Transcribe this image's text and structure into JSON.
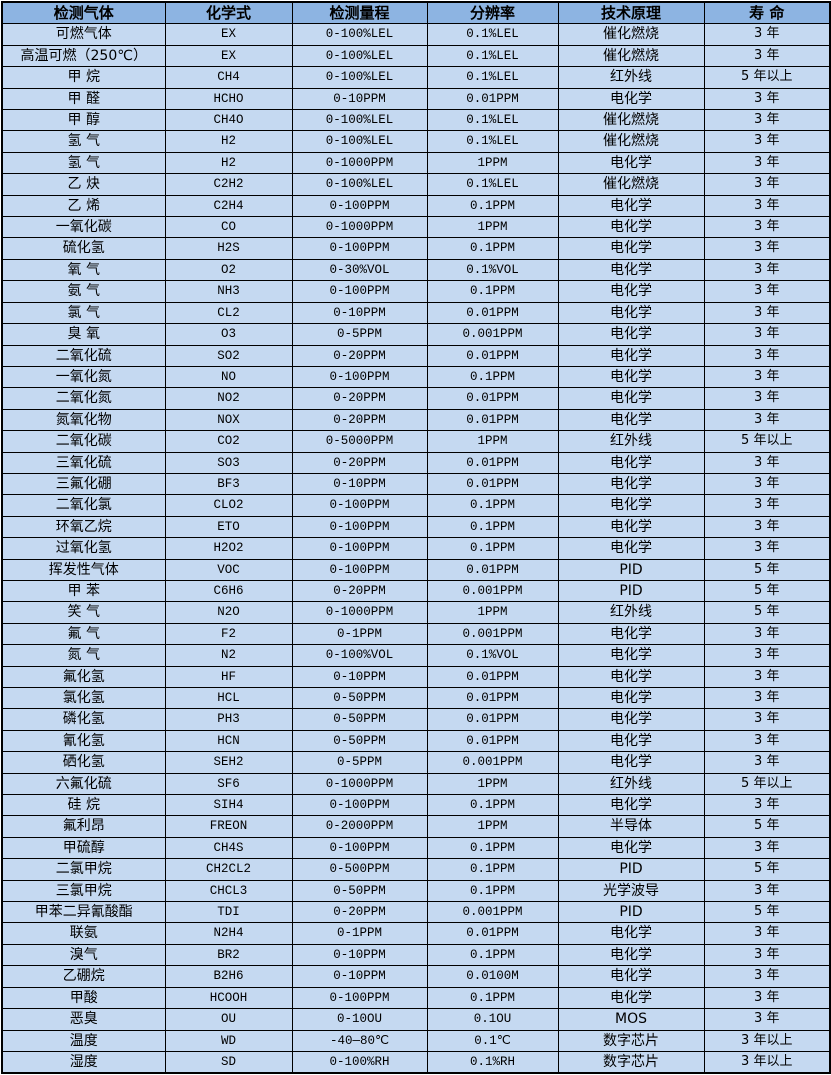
{
  "colors": {
    "header_bg": "#8db4e2",
    "cell_bg": "#c5d9f1",
    "border": "#000000",
    "text": "#000000"
  },
  "table": {
    "columns": [
      "检测气体",
      "化学式",
      "检测量程",
      "分辨率",
      "技术原理",
      "寿 命"
    ],
    "rows": [
      [
        "可燃气体",
        "EX",
        "0-100%LEL",
        "0.1%LEL",
        "催化燃烧",
        "3 年"
      ],
      [
        "高温可燃（250℃）",
        "EX",
        "0-100%LEL",
        "0.1%LEL",
        "催化燃烧",
        "3 年"
      ],
      [
        "甲 烷",
        "CH4",
        "0-100%LEL",
        "0.1%LEL",
        "红外线",
        "5 年以上"
      ],
      [
        "甲 醛",
        "HCHO",
        "0-10PPM",
        "0.01PPM",
        "电化学",
        "3 年"
      ],
      [
        "甲 醇",
        "CH4O",
        "0-100%LEL",
        "0.1%LEL",
        "催化燃烧",
        "3 年"
      ],
      [
        "氢 气",
        "H2",
        "0-100%LEL",
        "0.1%LEL",
        "催化燃烧",
        "3 年"
      ],
      [
        "氢 气",
        "H2",
        "0-1000PPM",
        "1PPM",
        "电化学",
        "3 年"
      ],
      [
        "乙 炔",
        "C2H2",
        "0-100%LEL",
        "0.1%LEL",
        "催化燃烧",
        "3 年"
      ],
      [
        "乙 烯",
        "C2H4",
        "0-100PPM",
        "0.1PPM",
        "电化学",
        "3 年"
      ],
      [
        "一氧化碳",
        "CO",
        "0-1000PPM",
        "1PPM",
        "电化学",
        "3 年"
      ],
      [
        "硫化氢",
        "H2S",
        "0-100PPM",
        "0.1PPM",
        "电化学",
        "3 年"
      ],
      [
        "氧 气",
        "O2",
        "0-30%VOL",
        "0.1%VOL",
        "电化学",
        "3 年"
      ],
      [
        "氨 气",
        "NH3",
        "0-100PPM",
        "0.1PPM",
        "电化学",
        "3 年"
      ],
      [
        "氯 气",
        "CL2",
        "0-10PPM",
        "0.01PPM",
        "电化学",
        "3 年"
      ],
      [
        "臭 氧",
        "O3",
        "0-5PPM",
        "0.001PPM",
        "电化学",
        "3 年"
      ],
      [
        "二氧化硫",
        "SO2",
        "0-20PPM",
        "0.01PPM",
        "电化学",
        "3 年"
      ],
      [
        "一氧化氮",
        "NO",
        "0-100PPM",
        "0.1PPM",
        "电化学",
        "3 年"
      ],
      [
        "二氧化氮",
        "NO2",
        "0-20PPM",
        "0.01PPM",
        "电化学",
        "3 年"
      ],
      [
        "氮氧化物",
        "NOX",
        "0-20PPM",
        "0.01PPM",
        "电化学",
        "3 年"
      ],
      [
        "二氧化碳",
        "CO2",
        "0-5000PPM",
        "1PPM",
        "红外线",
        "5 年以上"
      ],
      [
        "三氧化硫",
        "SO3",
        "0-20PPM",
        "0.01PPM",
        "电化学",
        "3 年"
      ],
      [
        "三氟化硼",
        "BF3",
        "0-10PPM",
        "0.01PPM",
        "电化学",
        "3 年"
      ],
      [
        "二氧化氯",
        "CLO2",
        "0-100PPM",
        "0.1PPM",
        "电化学",
        "3 年"
      ],
      [
        "环氧乙烷",
        "ETO",
        "0-100PPM",
        "0.1PPM",
        "电化学",
        "3 年"
      ],
      [
        "过氧化氢",
        "H2O2",
        "0-100PPM",
        "0.1PPM",
        "电化学",
        "3 年"
      ],
      [
        "挥发性气体",
        "VOC",
        "0-100PPM",
        "0.01PPM",
        "PID",
        "5 年"
      ],
      [
        "甲 苯",
        "C6H6",
        "0-20PPM",
        "0.001PPM",
        "PID",
        "5 年"
      ],
      [
        "笑 气",
        "N2O",
        "0-1000PPM",
        "1PPM",
        "红外线",
        "5 年"
      ],
      [
        "氟 气",
        "F2",
        "0-1PPM",
        "0.001PPM",
        "电化学",
        "3 年"
      ],
      [
        "氮 气",
        "N2",
        "0-100%VOL",
        "0.1%VOL",
        "电化学",
        "3 年"
      ],
      [
        "氟化氢",
        "HF",
        "0-10PPM",
        "0.01PPM",
        "电化学",
        "3 年"
      ],
      [
        "氯化氢",
        "HCL",
        "0-50PPM",
        "0.01PPM",
        "电化学",
        "3 年"
      ],
      [
        "磷化氢",
        "PH3",
        "0-50PPM",
        "0.01PPM",
        "电化学",
        "3 年"
      ],
      [
        "氰化氢",
        "HCN",
        "0-50PPM",
        "0.01PPM",
        "电化学",
        "3 年"
      ],
      [
        "硒化氢",
        "SEH2",
        "0-5PPM",
        "0.001PPM",
        "电化学",
        "3 年"
      ],
      [
        "六氟化硫",
        "SF6",
        "0-1000PPM",
        "1PPM",
        "红外线",
        "5 年以上"
      ],
      [
        "硅 烷",
        "SIH4",
        "0-100PPM",
        "0.1PPM",
        "电化学",
        "3 年"
      ],
      [
        "氟利昂",
        "FREON",
        "0-2000PPM",
        "1PPM",
        "半导体",
        "5 年"
      ],
      [
        "甲硫醇",
        "CH4S",
        "0-100PPM",
        "0.1PPM",
        "电化学",
        "3 年"
      ],
      [
        "二氯甲烷",
        "CH2CL2",
        "0-500PPM",
        "0.1PPM",
        "PID",
        "5 年"
      ],
      [
        "三氯甲烷",
        "CHCL3",
        "0-50PPM",
        "0.1PPM",
        "光学波导",
        "3 年"
      ],
      [
        "甲苯二异氰酸酯",
        "TDI",
        "0-20PPM",
        "0.001PPM",
        "PID",
        "5 年"
      ],
      [
        "联氨",
        "N2H4",
        "0-1PPM",
        "0.01PPM",
        "电化学",
        "3 年"
      ],
      [
        "溴气",
        "BR2",
        "0-10PPM",
        "0.1PPM",
        "电化学",
        "3 年"
      ],
      [
        "乙硼烷",
        "B2H6",
        "0-10PPM",
        "0.0100M",
        "电化学",
        "3 年"
      ],
      [
        "甲酸",
        "HCOOH",
        "0-100PPM",
        "0.1PPM",
        "电化学",
        "3 年"
      ],
      [
        "恶臭",
        "OU",
        "0-10OU",
        "0.1OU",
        "MOS",
        "3 年"
      ],
      [
        "温度",
        "WD",
        "-40—80℃",
        "0.1℃",
        "数字芯片",
        "3 年以上"
      ],
      [
        "湿度",
        "SD",
        "0-100%RH",
        "0.1%RH",
        "数字芯片",
        "3 年以上"
      ]
    ]
  }
}
